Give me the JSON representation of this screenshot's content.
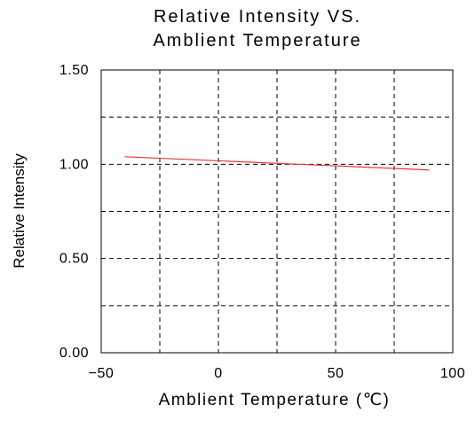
{
  "chart_data": {
    "type": "line",
    "title_lines": [
      "Relative Intensity VS.",
      "Amblient Temperature"
    ],
    "xlabel": "Amblient Temperature (℃)",
    "ylabel": "Relative Intensity",
    "xlim": [
      -50,
      100
    ],
    "ylim": [
      0.0,
      1.5
    ],
    "xticks": [
      -50,
      0,
      50,
      100
    ],
    "xtick_labels": [
      "−50",
      "0",
      "50",
      "100"
    ],
    "yticks": [
      0.0,
      0.5,
      1.0,
      1.5
    ],
    "ytick_labels": [
      "0.00",
      "0.50",
      "1.00",
      "1.50"
    ],
    "x_grid": [
      -25,
      0,
      25,
      50,
      75
    ],
    "y_grid": [
      0.25,
      0.5,
      0.75,
      1.0,
      1.25
    ],
    "grid": true,
    "series": [
      {
        "color": "#e8372f",
        "x": [
          -40,
          90
        ],
        "y": [
          1.04,
          0.97
        ]
      }
    ]
  }
}
